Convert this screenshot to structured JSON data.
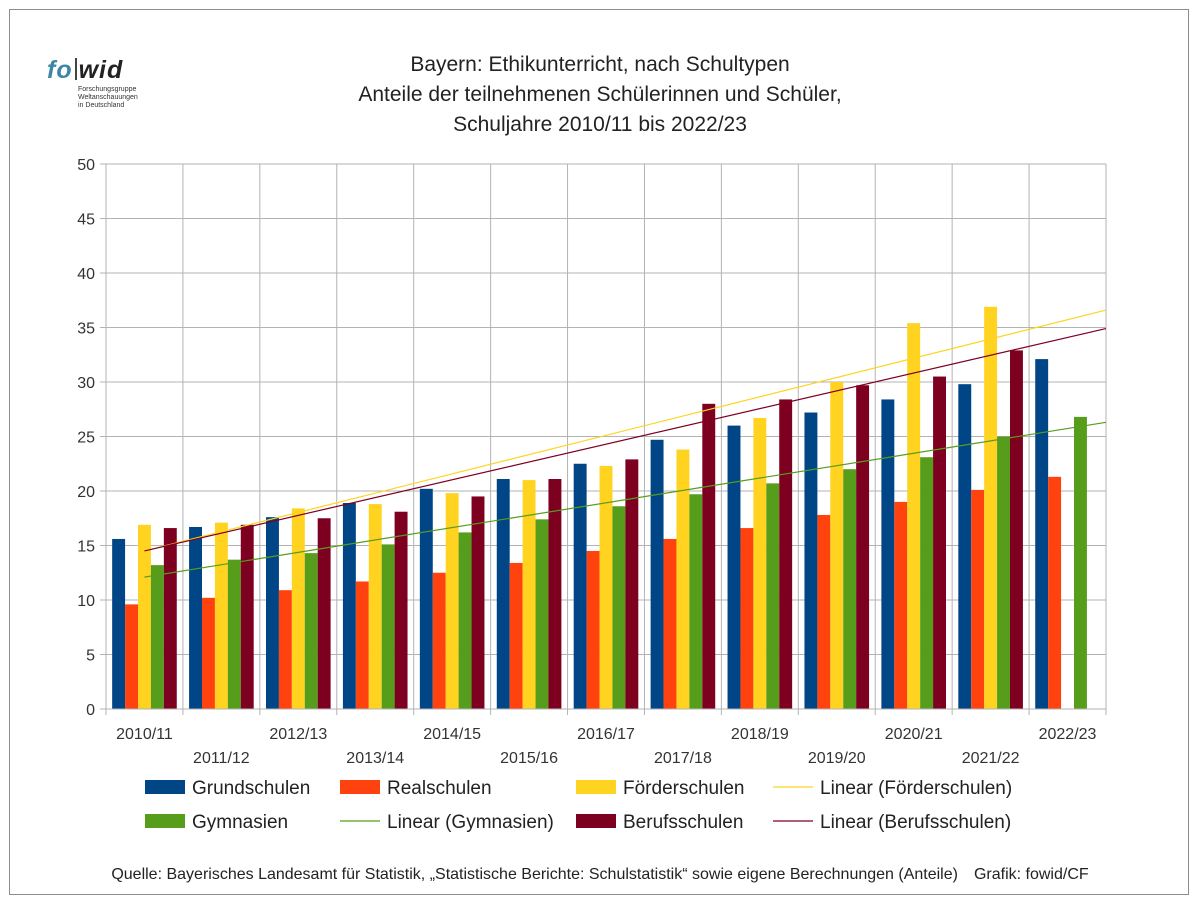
{
  "logo": {
    "brand_left": "fo",
    "brand_right": "wid",
    "subtitle_lines": [
      "Forschungsgruppe",
      "Weltanschauungen",
      "in Deutschland"
    ]
  },
  "title_lines": [
    "Bayern: Ethikunterricht, nach Schultypen",
    "Anteile der teilnehmenen Schülerinnen und Schüler,",
    "Schuljahre 2010/11 bis 2022/23"
  ],
  "source": {
    "text": "Quelle: Bayerisches Landesamt für Statistik, „Statistische Berichte: Schulstatistik“ sowie eigene Berechnungen (Anteile)",
    "credit": "Grafik: fowid/CF"
  },
  "chart_data": {
    "type": "bar",
    "title": "Bayern: Ethikunterricht, nach Schultypen",
    "xlabel": "",
    "ylabel": "",
    "ylim": [
      0,
      50
    ],
    "yticks": [
      "0",
      "5",
      "10",
      "15",
      "20",
      "25",
      "30",
      "35",
      "40",
      "45",
      "50"
    ],
    "grid": true,
    "categories": [
      "2010/11",
      "2011/12",
      "2012/13",
      "2013/14",
      "2014/15",
      "2015/16",
      "2016/17",
      "2017/18",
      "2018/19",
      "2019/20",
      "2020/21",
      "2021/22",
      "2022/23"
    ],
    "series": [
      {
        "name": "Grundschulen",
        "color": "#004586",
        "values": [
          15.6,
          16.7,
          17.6,
          18.9,
          20.2,
          21.1,
          22.5,
          24.7,
          26.0,
          27.2,
          28.4,
          29.8,
          32.1
        ]
      },
      {
        "name": "Realschulen",
        "color": "#ff420e",
        "values": [
          9.6,
          10.2,
          10.9,
          11.7,
          12.5,
          13.4,
          14.5,
          15.6,
          16.6,
          17.8,
          19.0,
          20.1,
          21.3
        ]
      },
      {
        "name": "Förderschulen",
        "color": "#ffd320",
        "values": [
          16.9,
          17.1,
          18.4,
          18.8,
          19.8,
          21.0,
          22.3,
          23.8,
          26.7,
          30.0,
          35.4,
          36.9,
          null
        ]
      },
      {
        "name": "Gymnasien",
        "color": "#579d1c",
        "values": [
          13.2,
          13.7,
          14.3,
          15.1,
          16.2,
          17.4,
          18.6,
          19.7,
          20.7,
          22.0,
          23.1,
          25.0,
          26.8
        ]
      },
      {
        "name": "Berufsschulen",
        "color": "#7e0021",
        "values": [
          16.6,
          16.9,
          17.5,
          18.1,
          19.5,
          21.1,
          22.9,
          28.0,
          28.4,
          29.7,
          30.5,
          32.9,
          null
        ]
      }
    ],
    "trendlines": [
      {
        "name": "Linear (Förderschulen)",
        "series": "Förderschulen",
        "color": "#ffd320",
        "start": 14.5,
        "end": 36.6
      },
      {
        "name": "Linear (Gymnasien)",
        "series": "Gymnasien",
        "color": "#579d1c",
        "start": 12.1,
        "end": 26.3
      },
      {
        "name": "Linear (Berufsschulen)",
        "series": "Berufsschulen",
        "color": "#7e0021",
        "start": 14.5,
        "end": 34.9
      }
    ],
    "legend": {
      "placement": "bottom",
      "entries": [
        {
          "label": "Grundschulen",
          "kind": "bar",
          "color": "#004586"
        },
        {
          "label": "Realschulen",
          "kind": "bar",
          "color": "#ff420e"
        },
        {
          "label": "Förderschulen",
          "kind": "bar",
          "color": "#ffd320"
        },
        {
          "label": "Linear (Förderschulen)",
          "kind": "line",
          "color": "#ffd320"
        },
        {
          "label": "Gymnasien",
          "kind": "bar",
          "color": "#579d1c"
        },
        {
          "label": "Linear (Gymnasien)",
          "kind": "line",
          "color": "#579d1c"
        },
        {
          "label": "Berufsschulen",
          "kind": "bar",
          "color": "#7e0021"
        },
        {
          "label": "Linear (Berufsschulen)",
          "kind": "line",
          "color": "#7e0021"
        }
      ]
    }
  }
}
